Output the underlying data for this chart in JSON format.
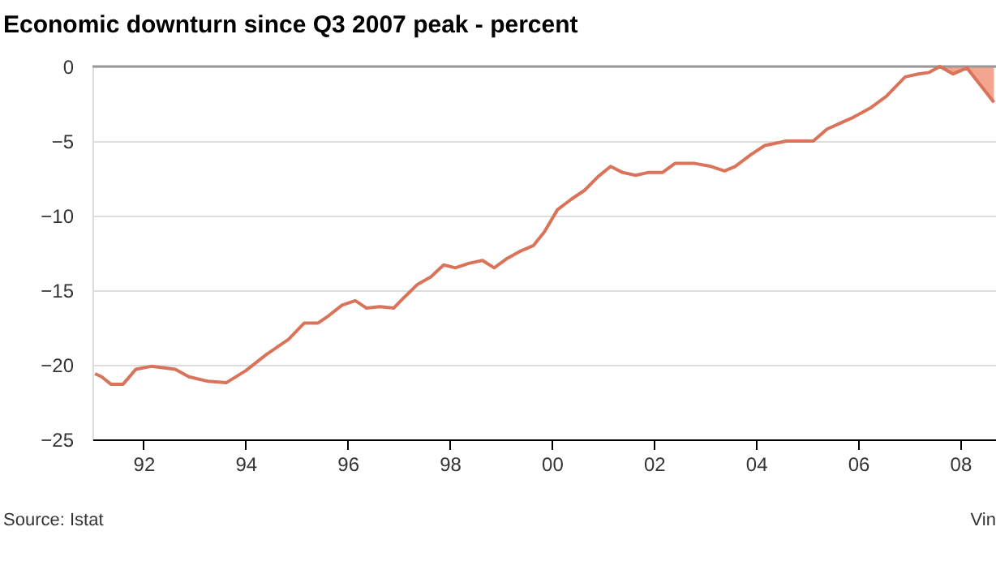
{
  "chart_data": {
    "type": "line",
    "title": "Economic downturn since Q3 2007 peak - percent",
    "x": [
      1991.05,
      1991.18,
      1991.36,
      1991.6,
      1991.85,
      1992.15,
      1992.62,
      1992.89,
      1993.26,
      1993.62,
      1994.0,
      1994.41,
      1994.84,
      1995.15,
      1995.42,
      1995.63,
      1995.89,
      1996.15,
      1996.37,
      1996.63,
      1996.9,
      1997.1,
      1997.37,
      1997.63,
      1997.88,
      1998.11,
      1998.37,
      1998.64,
      1998.87,
      1999.11,
      1999.37,
      1999.64,
      1999.85,
      2000.11,
      2000.38,
      2000.64,
      2000.9,
      2001.15,
      2001.38,
      2001.64,
      2001.9,
      2002.17,
      2002.41,
      2002.8,
      2003.12,
      2003.38,
      2003.59,
      2003.9,
      2004.17,
      2004.59,
      2004.85,
      2005.12,
      2005.39,
      2005.65,
      2005.91,
      2006.23,
      2006.55,
      2006.92,
      2007.18,
      2007.39,
      2007.6,
      2007.86,
      2008.13,
      2008.66
    ],
    "series": [
      {
        "type": "line",
        "color": "#d9735a",
        "values": [
          -20.6,
          -20.8,
          -21.3,
          -21.3,
          -20.3,
          -20.1,
          -20.3,
          -20.8,
          -21.1,
          -21.2,
          -20.4,
          -19.3,
          -18.3,
          -17.2,
          -17.2,
          -16.7,
          -16.0,
          -15.7,
          -16.2,
          -16.1,
          -16.2,
          -15.5,
          -14.6,
          -14.1,
          -13.3,
          -13.5,
          -13.2,
          -13.0,
          -13.5,
          -12.9,
          -12.4,
          -12.0,
          -11.1,
          -9.6,
          -8.9,
          -8.3,
          -7.4,
          -6.7,
          -7.1,
          -7.3,
          -7.1,
          -7.1,
          -6.5,
          -6.5,
          -6.7,
          -7.0,
          -6.7,
          -5.9,
          -5.3,
          -5.0,
          -5.0,
          -5.0,
          -4.2,
          -3.8,
          -3.4,
          -2.8,
          -2.0,
          -0.7,
          -0.5,
          -0.4,
          0,
          -0.5,
          -0.1,
          -2.4
        ]
      },
      {
        "type": "area",
        "color": "#f4a58f",
        "x": [
          2007.6,
          2007.86,
          2008.13,
          2008.66
        ],
        "values": [
          0,
          -0.5,
          -0.1,
          -2.4
        ]
      }
    ],
    "xlim": [
      1991.0,
      2008.7
    ],
    "xticks": [
      {
        "value": 1992,
        "label": "92"
      },
      {
        "value": 1994,
        "label": "94"
      },
      {
        "value": 1996,
        "label": "96"
      },
      {
        "value": 1998,
        "label": "98"
      },
      {
        "value": 2000,
        "label": "00"
      },
      {
        "value": 2002,
        "label": "02"
      },
      {
        "value": 2004,
        "label": "04"
      },
      {
        "value": 2006,
        "label": "06"
      },
      {
        "value": 2008,
        "label": "08"
      }
    ],
    "ylim": [
      -25,
      0
    ],
    "yticks": [
      -25,
      -20,
      -15,
      -10,
      -5,
      0
    ],
    "grid": "y",
    "annotations": [
      "Source: Istat",
      "Vin"
    ]
  }
}
